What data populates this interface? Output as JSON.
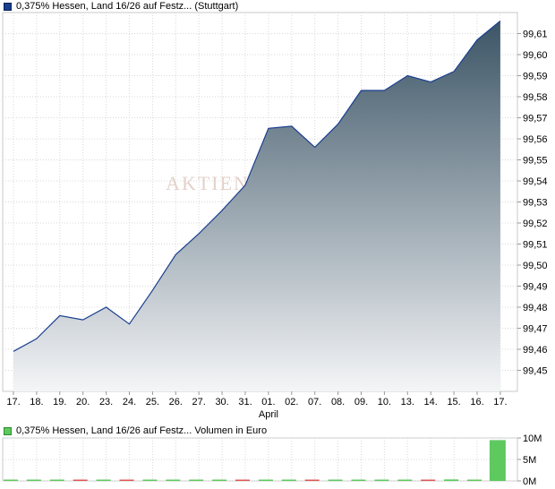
{
  "legend_price": {
    "label": "0,375% Hessen, Land 16/26 auf Festz... (Stuttgart)",
    "color": "#1a3f8f"
  },
  "legend_volume": {
    "label": "0,375% Hessen, Land 16/26 auf Festz... Volumen in Euro",
    "color": "#5ec95e"
  },
  "watermark": "AKTIEN",
  "month_label": "April",
  "chart_data": [
    {
      "type": "area",
      "x": [
        "17.",
        "18.",
        "19.",
        "20.",
        "23.",
        "24.",
        "25.",
        "26.",
        "27.",
        "30.",
        "31.",
        "01.",
        "02.",
        "07.",
        "08.",
        "09.",
        "10.",
        "13.",
        "14.",
        "15.",
        "16.",
        "17."
      ],
      "values": [
        99.459,
        99.465,
        99.476,
        99.474,
        99.48,
        99.472,
        99.488,
        99.505,
        99.515,
        99.526,
        99.538,
        99.565,
        99.566,
        99.556,
        99.567,
        99.583,
        99.583,
        99.59,
        99.587,
        99.592,
        99.607,
        99.616
      ],
      "y_ticks": [
        "99,45",
        "99,46",
        "99,47",
        "99,48",
        "99,49",
        "99,50",
        "99,51",
        "99,52",
        "99,53",
        "99,54",
        "99,55",
        "99,56",
        "99,57",
        "99,58",
        "99,59",
        "99,60",
        "99,61"
      ],
      "ylim": [
        99.44,
        99.62
      ],
      "line_color": "#1a3f8f",
      "fill_top": "#3c5566",
      "fill_bottom": "#f4f5f7",
      "grid": true
    },
    {
      "type": "bar",
      "x": [
        "17.",
        "18.",
        "19.",
        "20.",
        "23.",
        "24.",
        "25.",
        "26.",
        "27.",
        "30.",
        "31.",
        "01.",
        "02.",
        "07.",
        "08.",
        "09.",
        "10.",
        "13.",
        "14.",
        "15.",
        "16.",
        "17."
      ],
      "values": [
        0.02,
        0.02,
        0.02,
        0.02,
        0.02,
        0.02,
        0.02,
        0.02,
        0.02,
        0.02,
        0.02,
        0.02,
        0.02,
        0.02,
        0.02,
        0.02,
        0.02,
        0.02,
        0.02,
        0.35,
        0.05,
        9.5
      ],
      "bar_colors": [
        "#5ec95e",
        "#5ec95e",
        "#5ec95e",
        "#e05555",
        "#5ec95e",
        "#e05555",
        "#5ec95e",
        "#5ec95e",
        "#5ec95e",
        "#5ec95e",
        "#e05555",
        "#5ec95e",
        "#5ec95e",
        "#e05555",
        "#5ec95e",
        "#5ec95e",
        "#5ec95e",
        "#5ec95e",
        "#e05555",
        "#5ec95e",
        "#5ec95e",
        "#5ec95e"
      ],
      "y_ticks": [
        "10M",
        "5M",
        "0M"
      ],
      "ylim": [
        0,
        10
      ],
      "unit": "M"
    }
  ]
}
